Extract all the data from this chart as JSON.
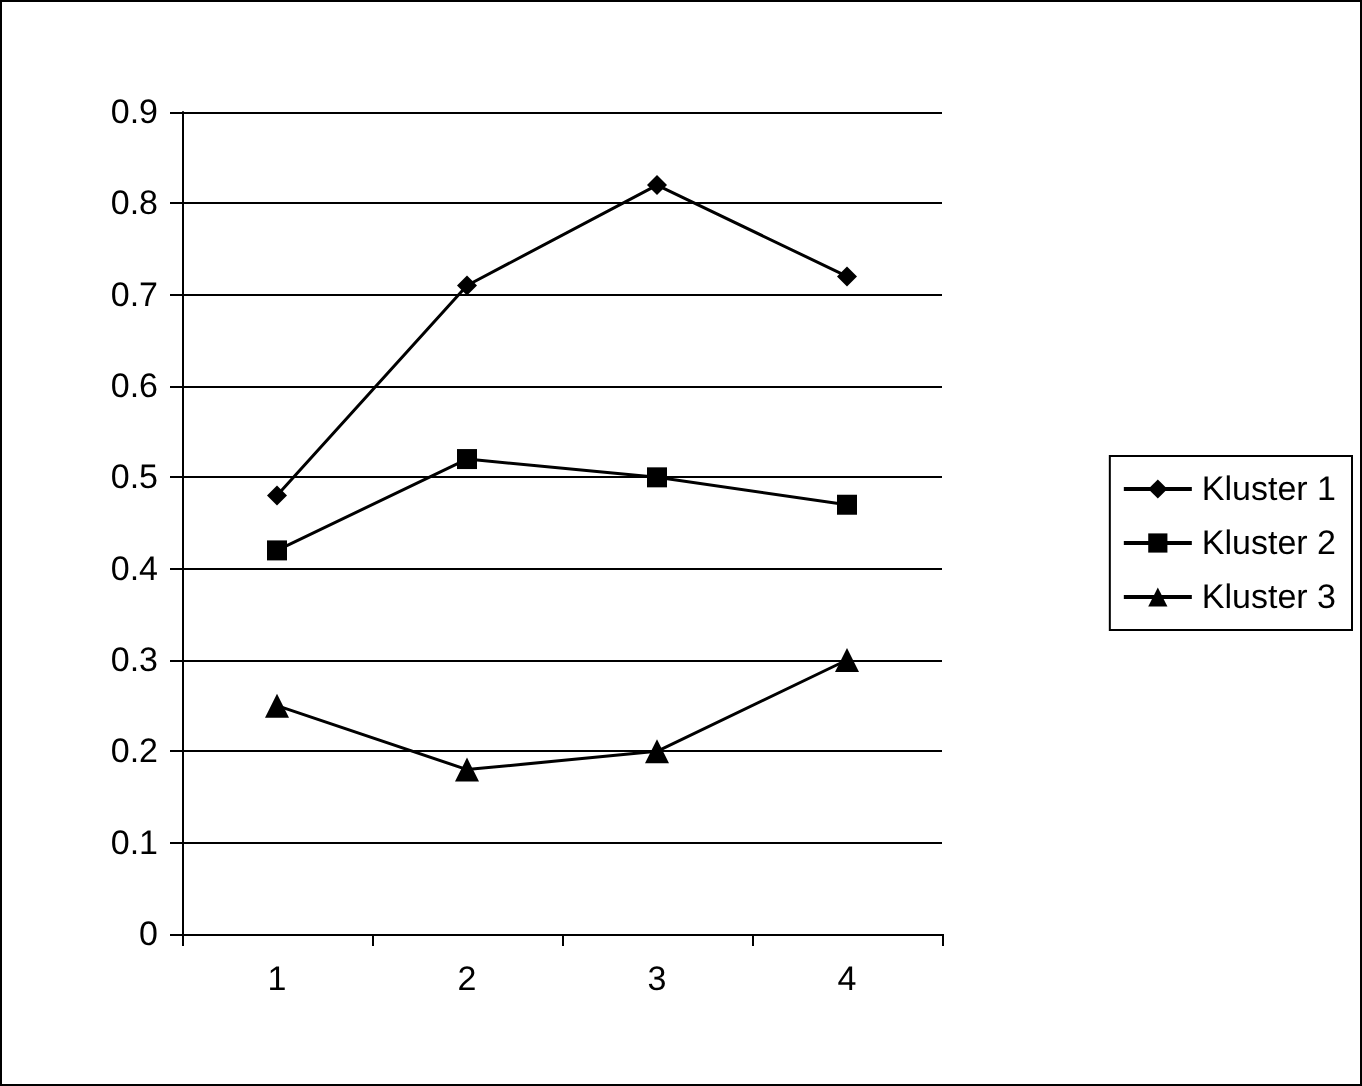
{
  "chart_data": {
    "type": "line",
    "categories": [
      "1",
      "2",
      "3",
      "4"
    ],
    "series": [
      {
        "name": "Kluster 1",
        "color": "#000000",
        "marker": "diamond",
        "values": [
          0.48,
          0.71,
          0.82,
          0.72
        ]
      },
      {
        "name": "Kluster 2",
        "color": "#000000",
        "marker": "square",
        "values": [
          0.42,
          0.52,
          0.5,
          0.47
        ]
      },
      {
        "name": "Kluster 3",
        "color": "#000000",
        "marker": "triangle",
        "values": [
          0.25,
          0.18,
          0.2,
          0.3
        ]
      }
    ],
    "ylim": [
      0,
      0.9
    ],
    "yticks": [
      0,
      0.1,
      0.2,
      0.3,
      0.4,
      0.5,
      0.6,
      0.7,
      0.8,
      0.9
    ],
    "grid": "y",
    "legend": "right",
    "line_style": "solid"
  }
}
